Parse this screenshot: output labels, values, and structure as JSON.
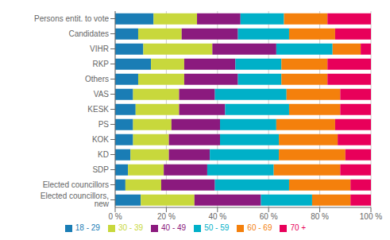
{
  "chart_data": {
    "type": "bar",
    "orientation": "horizontal",
    "stacked": true,
    "grid": true,
    "legend": "bottom",
    "categories": [
      "Persons entit. to vote",
      "Candidates",
      "VIHR",
      "RKP",
      "Others",
      "VAS",
      "KESK",
      "PS",
      "KOK",
      "KD",
      "SDP",
      "Elected councillors",
      "Elected councillors, new"
    ],
    "series": [
      {
        "name": "18 - 29",
        "color": "#1a7db5",
        "values": [
          15,
          9,
          11,
          14,
          9,
          7,
          8,
          7,
          7,
          6,
          5,
          4,
          10
        ]
      },
      {
        "name": "30 - 39",
        "color": "#c8d83c",
        "values": [
          17,
          17,
          27,
          13,
          18,
          18,
          17,
          15,
          14,
          15,
          14,
          14,
          21
        ]
      },
      {
        "name": "40 - 49",
        "color": "#8b1a7e",
        "values": [
          17,
          22,
          25,
          20,
          21,
          14,
          18,
          19,
          20,
          16,
          17,
          21,
          26
        ]
      },
      {
        "name": "50 - 59",
        "color": "#00b0c8",
        "values": [
          17,
          20,
          22,
          18,
          17,
          28,
          25,
          22,
          23,
          27,
          26,
          29,
          20
        ]
      },
      {
        "name": "60 - 69",
        "color": "#f4800c",
        "values": [
          17,
          18,
          11,
          18,
          18,
          21,
          20,
          23,
          23,
          26,
          26,
          24,
          15
        ]
      },
      {
        "name": "70 +",
        "color": "#e8005a",
        "values": [
          17,
          14,
          4,
          17,
          17,
          12,
          12,
          14,
          13,
          10,
          12,
          8,
          8
        ]
      }
    ],
    "xlim": [
      0,
      100
    ],
    "xticks": [
      {
        "value": 0,
        "label": "0 %"
      },
      {
        "value": 20,
        "label": "20 %"
      },
      {
        "value": 40,
        "label": "40 %"
      },
      {
        "value": 60,
        "label": "60 %"
      },
      {
        "value": 80,
        "label": "80 %"
      },
      {
        "value": 100,
        "label": "100 %"
      }
    ]
  }
}
